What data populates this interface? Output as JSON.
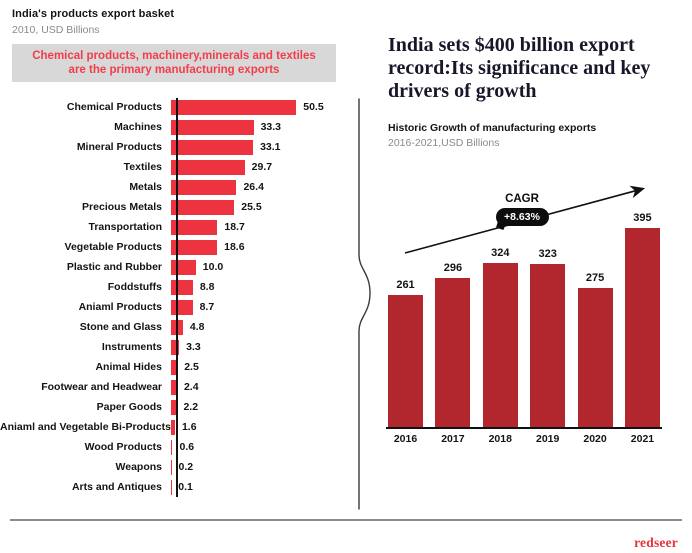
{
  "callout": {
    "line1": "Chemical products, machinery,minerals and textiles",
    "line2": "are the primary manufacturing exports"
  },
  "right_panel": {
    "headline": "India sets $400 billion export record:Its significance and key drivers of growth"
  },
  "footer": {
    "brand": "redseer"
  },
  "colors": {
    "left_bar": "#ee3340",
    "right_bar": "#b2262e",
    "callout_text": "#f43c4b",
    "callout_bg": "#d8d8d8",
    "brand_red": "#e8323c",
    "annotation_pill_bg": "#0d0d0d"
  },
  "chart_data": [
    {
      "type": "bar",
      "orientation": "horizontal",
      "title": "India's products export basket",
      "subtitle": "2010, USD Billions",
      "categories": [
        "Chemical Products",
        "Machines",
        "Mineral Products",
        "Textiles",
        "Metals",
        "Precious Metals",
        "Transportation",
        "Vegetable Products",
        "Plastic and Rubber",
        "Foddstuffs",
        "Aniaml Products",
        "Stone and Glass",
        "Instruments",
        "Animal Hides",
        "Footwear and Headwear",
        "Paper Goods",
        "Aniaml and Vegetable Bi-Products",
        "Wood Products",
        "Weapons",
        "Arts and Antiques"
      ],
      "values": [
        50.5,
        33.3,
        33.1,
        29.7,
        26.4,
        25.5,
        18.7,
        18.6,
        10.0,
        8.8,
        8.7,
        4.8,
        3.3,
        2.5,
        2.4,
        2.2,
        1.6,
        0.6,
        0.2,
        0.1
      ],
      "xlim": [
        0,
        55
      ],
      "value_labels_shown": true,
      "grid": false,
      "legend": false
    },
    {
      "type": "bar",
      "orientation": "vertical",
      "title": "Historic Growth of manufacturing exports",
      "subtitle": "2016-2021,USD Billions",
      "categories": [
        "2016",
        "2017",
        "2018",
        "2019",
        "2020",
        "2021"
      ],
      "values": [
        261,
        296,
        324,
        323,
        275,
        395
      ],
      "ylim": [
        0,
        420
      ],
      "annotation": {
        "label": "CAGR",
        "value": "+8.63%"
      },
      "value_labels_shown": true,
      "grid": false,
      "legend": false
    }
  ]
}
